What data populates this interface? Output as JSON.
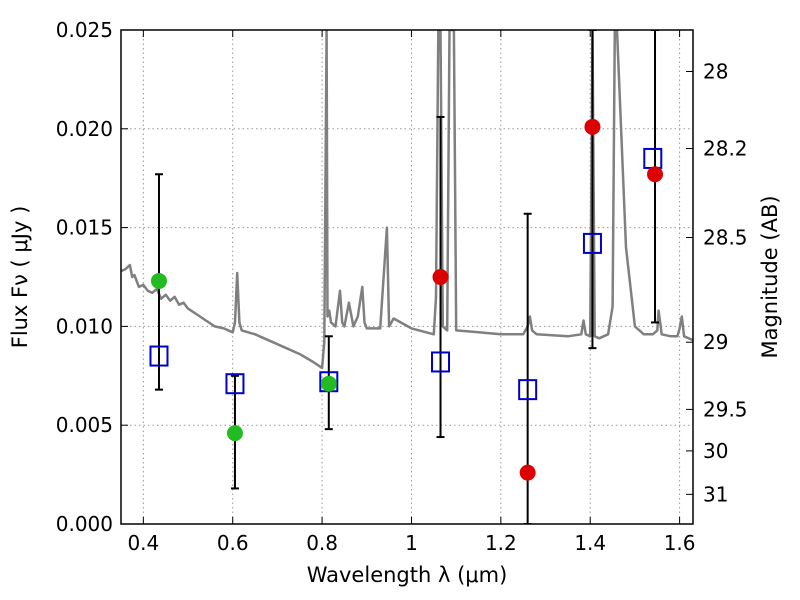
{
  "chart_data": {
    "type": "scatter",
    "title": "",
    "xlabel": "Wavelength  λ (μm)",
    "ylabel": "Flux  Fν  ( μJy )",
    "y2label": "Magnitude (AB)",
    "xlim": [
      0.35,
      1.63
    ],
    "ylim": [
      0.0,
      0.025
    ],
    "grid": true,
    "x_ticks": [
      0.4,
      0.6,
      0.8,
      1.0,
      1.2,
      1.4,
      1.6
    ],
    "x_tick_labels": [
      "0.4",
      "0.6",
      "0.8",
      "1",
      "1.2",
      "1.4",
      "1.6"
    ],
    "y_ticks": [
      0.0,
      0.005,
      0.01,
      0.015,
      0.02,
      0.025
    ],
    "y_tick_labels": [
      "0.000",
      "0.005",
      "0.010",
      "0.015",
      "0.020",
      "0.025"
    ],
    "y2_ticks": [
      {
        "label": "28",
        "flux": 0.0229
      },
      {
        "label": "28.2",
        "flux": 0.019
      },
      {
        "label": "28.5",
        "flux": 0.0145
      },
      {
        "label": "29",
        "flux": 0.0092
      },
      {
        "label": "29.5",
        "flux": 0.0058
      },
      {
        "label": "30",
        "flux": 0.0037
      },
      {
        "label": "31",
        "flux": 0.0015
      }
    ],
    "colors": {
      "spectrum": "#808080",
      "model_square": "#0000cc",
      "detected": "#22bb22",
      "measured": "#dd0000",
      "errorbar": "#000000",
      "grid": "#999999"
    },
    "series": [
      {
        "role": "template-spectrum",
        "color": "#808080",
        "x": [
          0.35,
          0.36,
          0.37,
          0.375,
          0.38,
          0.39,
          0.4,
          0.41,
          0.42,
          0.43,
          0.44,
          0.45,
          0.46,
          0.47,
          0.48,
          0.49,
          0.5,
          0.52,
          0.54,
          0.56,
          0.58,
          0.6,
          0.605,
          0.61,
          0.615,
          0.62,
          0.65,
          0.7,
          0.75,
          0.78,
          0.8,
          0.805,
          0.81,
          0.812,
          0.816,
          0.82,
          0.83,
          0.84,
          0.845,
          0.85,
          0.86,
          0.87,
          0.88,
          0.89,
          0.895,
          0.9,
          0.93,
          0.945,
          0.95,
          0.96,
          1.0,
          1.05,
          1.055,
          1.06,
          1.065,
          1.07,
          1.08,
          1.085,
          1.09,
          1.095,
          1.1,
          1.15,
          1.2,
          1.25,
          1.26,
          1.265,
          1.27,
          1.28,
          1.35,
          1.38,
          1.385,
          1.39,
          1.4,
          1.405,
          1.41,
          1.42,
          1.44,
          1.45,
          1.455,
          1.46,
          1.48,
          1.5,
          1.52,
          1.54,
          1.55,
          1.553,
          1.56,
          1.58,
          1.595,
          1.6,
          1.605,
          1.61,
          1.63
        ],
        "y": [
          0.0128,
          0.0129,
          0.0131,
          0.0125,
          0.0126,
          0.012,
          0.0121,
          0.0118,
          0.0117,
          0.0119,
          0.0114,
          0.0116,
          0.0113,
          0.0115,
          0.0111,
          0.0112,
          0.0109,
          0.0106,
          0.0103,
          0.01,
          0.0099,
          0.0097,
          0.0102,
          0.0127,
          0.0102,
          0.0098,
          0.0096,
          0.0091,
          0.0086,
          0.0082,
          0.0079,
          0.0092,
          0.025,
          0.0105,
          0.0108,
          0.0102,
          0.01,
          0.0118,
          0.0102,
          0.01,
          0.0112,
          0.01,
          0.0105,
          0.012,
          0.0102,
          0.0099,
          0.0099,
          0.015,
          0.01,
          0.0104,
          0.0099,
          0.0096,
          0.0115,
          0.025,
          0.025,
          0.01,
          0.0098,
          0.025,
          0.025,
          0.025,
          0.0098,
          0.0097,
          0.0096,
          0.0096,
          0.01,
          0.0105,
          0.0098,
          0.0096,
          0.0095,
          0.0096,
          0.0103,
          0.0096,
          0.0095,
          0.025,
          0.0095,
          0.0094,
          0.0096,
          0.011,
          0.025,
          0.025,
          0.014,
          0.01,
          0.0096,
          0.0096,
          0.0098,
          0.0108,
          0.0096,
          0.0095,
          0.0095,
          0.0099,
          0.0105,
          0.0095,
          0.0093
        ]
      },
      {
        "role": "model-squares",
        "color": "#0000cc",
        "points": [
          {
            "x": 0.435,
            "y": 0.0085
          },
          {
            "x": 0.605,
            "y": 0.0071
          },
          {
            "x": 0.815,
            "y": 0.0072
          },
          {
            "x": 1.065,
            "y": 0.0082
          },
          {
            "x": 1.26,
            "y": 0.0068
          },
          {
            "x": 1.405,
            "y": 0.0142
          },
          {
            "x": 1.54,
            "y": 0.0185
          }
        ]
      },
      {
        "role": "measured-points",
        "points": [
          {
            "x": 0.435,
            "y": 0.0123,
            "yerr_low": 0.0068,
            "yerr_high": 0.0177,
            "color": "#22bb22"
          },
          {
            "x": 0.605,
            "y": 0.0046,
            "yerr_low": 0.0018,
            "yerr_high": 0.0075,
            "color": "#22bb22"
          },
          {
            "x": 0.815,
            "y": 0.0071,
            "yerr_low": 0.0048,
            "yerr_high": 0.0095,
            "color": "#22bb22"
          },
          {
            "x": 1.065,
            "y": 0.0125,
            "yerr_low": 0.0044,
            "yerr_high": 0.0206,
            "color": "#dd0000"
          },
          {
            "x": 1.26,
            "y": 0.0026,
            "yerr_low": 0.0,
            "yerr_high": 0.0157,
            "color": "#dd0000"
          },
          {
            "x": 1.405,
            "y": 0.0201,
            "yerr_low": 0.0089,
            "yerr_high": 0.025,
            "color": "#dd0000"
          },
          {
            "x": 1.545,
            "y": 0.0177,
            "yerr_low": 0.0102,
            "yerr_high": 0.025,
            "color": "#dd0000"
          }
        ]
      }
    ]
  }
}
